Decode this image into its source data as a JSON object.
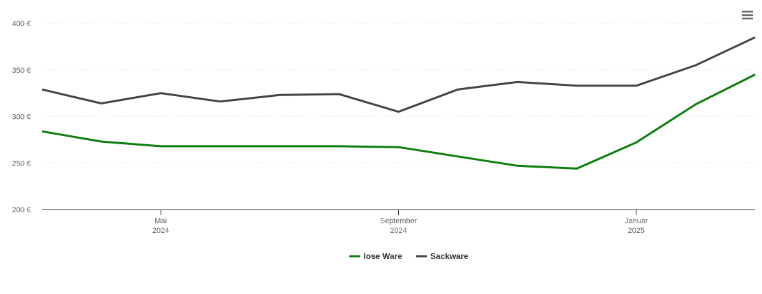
{
  "chart_data": {
    "type": "line",
    "x": [
      "2024-03",
      "2024-04",
      "2024-05",
      "2024-06",
      "2024-07",
      "2024-08",
      "2024-09",
      "2024-10",
      "2024-11",
      "2024-12",
      "2025-01",
      "2025-02",
      "2025-03"
    ],
    "xlim": [
      "2024-03",
      "2025-03"
    ],
    "xticks": [
      {
        "value": "2024-05",
        "label": [
          "Mai",
          "2024"
        ]
      },
      {
        "value": "2024-09",
        "label": [
          "September",
          "2024"
        ]
      },
      {
        "value": "2025-01",
        "label": [
          "Januar",
          "2025"
        ]
      }
    ],
    "ylim": [
      200,
      400
    ],
    "yticks": [
      {
        "value": 200,
        "label": "200 €"
      },
      {
        "value": 250,
        "label": "250 €"
      },
      {
        "value": 300,
        "label": "300 €"
      },
      {
        "value": 350,
        "label": "350 €"
      },
      {
        "value": 400,
        "label": "400 €"
      }
    ],
    "grid": true,
    "legend": "bottom",
    "series": [
      {
        "name": "lose Ware",
        "color": "#0a7d0a",
        "values": [
          284,
          273,
          268,
          268,
          268,
          268,
          267,
          257,
          247,
          244,
          272,
          313,
          345
        ]
      },
      {
        "name": "Sackware",
        "color": "#434348",
        "values": [
          329,
          314,
          325,
          316,
          323,
          324,
          305,
          329,
          337,
          333,
          333,
          355,
          385
        ]
      }
    ]
  }
}
